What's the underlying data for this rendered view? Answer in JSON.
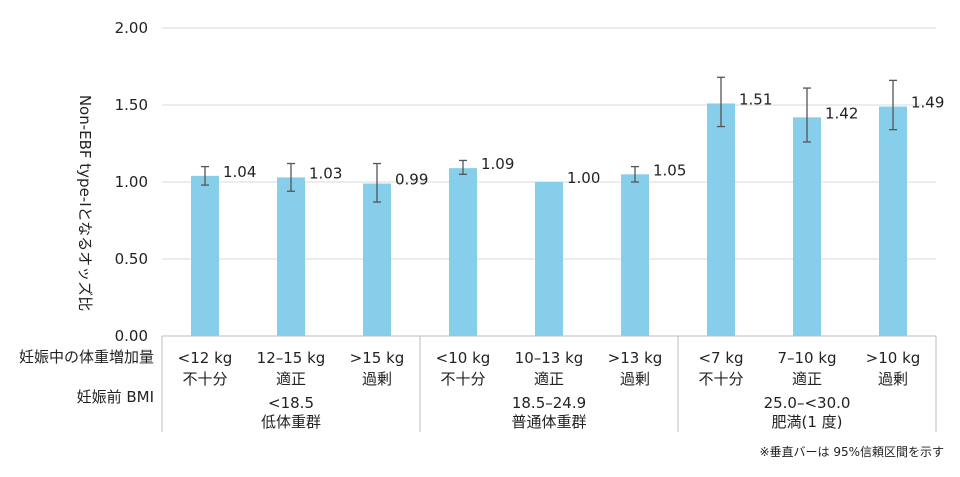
{
  "chart_data": {
    "type": "bar",
    "ylabel": "Non-EBF type-Ⅰとなるオッズ比",
    "ylim": [
      0,
      2
    ],
    "yticks": [
      "0.00",
      "0.50",
      "1.00",
      "1.50",
      "2.00"
    ],
    "grid": true,
    "bar_color": "#87ceeb",
    "row_headers": {
      "weight_gain": "妊娠中の体重増加量",
      "bmi": "妊娠前 BMI"
    },
    "groups": [
      {
        "name_line1": "<18.5",
        "name_line2": "低体重群",
        "bars": [
          {
            "range": "<12 kg",
            "category": "不十分",
            "value": 1.04,
            "label": "1.04",
            "ci": [
              0.98,
              1.1
            ]
          },
          {
            "range": "12–15 kg",
            "category": "適正",
            "value": 1.03,
            "label": "1.03",
            "ci": [
              0.94,
              1.12
            ]
          },
          {
            "range": ">15 kg",
            "category": "過剰",
            "value": 0.99,
            "label": "0.99",
            "ci": [
              0.87,
              1.12
            ]
          }
        ]
      },
      {
        "name_line1": "18.5–24.9",
        "name_line2": "普通体重群",
        "bars": [
          {
            "range": "<10 kg",
            "category": "不十分",
            "value": 1.09,
            "label": "1.09",
            "ci": [
              1.05,
              1.14
            ]
          },
          {
            "range": "10–13 kg",
            "category": "適正",
            "value": 1.0,
            "label": "1.00",
            "ci": null
          },
          {
            "range": ">13 kg",
            "category": "過剰",
            "value": 1.05,
            "label": "1.05",
            "ci": [
              1.0,
              1.1
            ]
          }
        ]
      },
      {
        "name_line1": "25.0–<30.0",
        "name_line2": "肥満(1 度)",
        "bars": [
          {
            "range": "<7 kg",
            "category": "不十分",
            "value": 1.51,
            "label": "1.51",
            "ci": [
              1.36,
              1.68
            ]
          },
          {
            "range": "7–10 kg",
            "category": "適正",
            "value": 1.42,
            "label": "1.42",
            "ci": [
              1.26,
              1.61
            ]
          },
          {
            "range": ">10 kg",
            "category": "過剰",
            "value": 1.49,
            "label": "1.49",
            "ci": [
              1.34,
              1.66
            ]
          }
        ]
      }
    ],
    "note": "※垂直バーは 95%信頼区間を示す"
  }
}
